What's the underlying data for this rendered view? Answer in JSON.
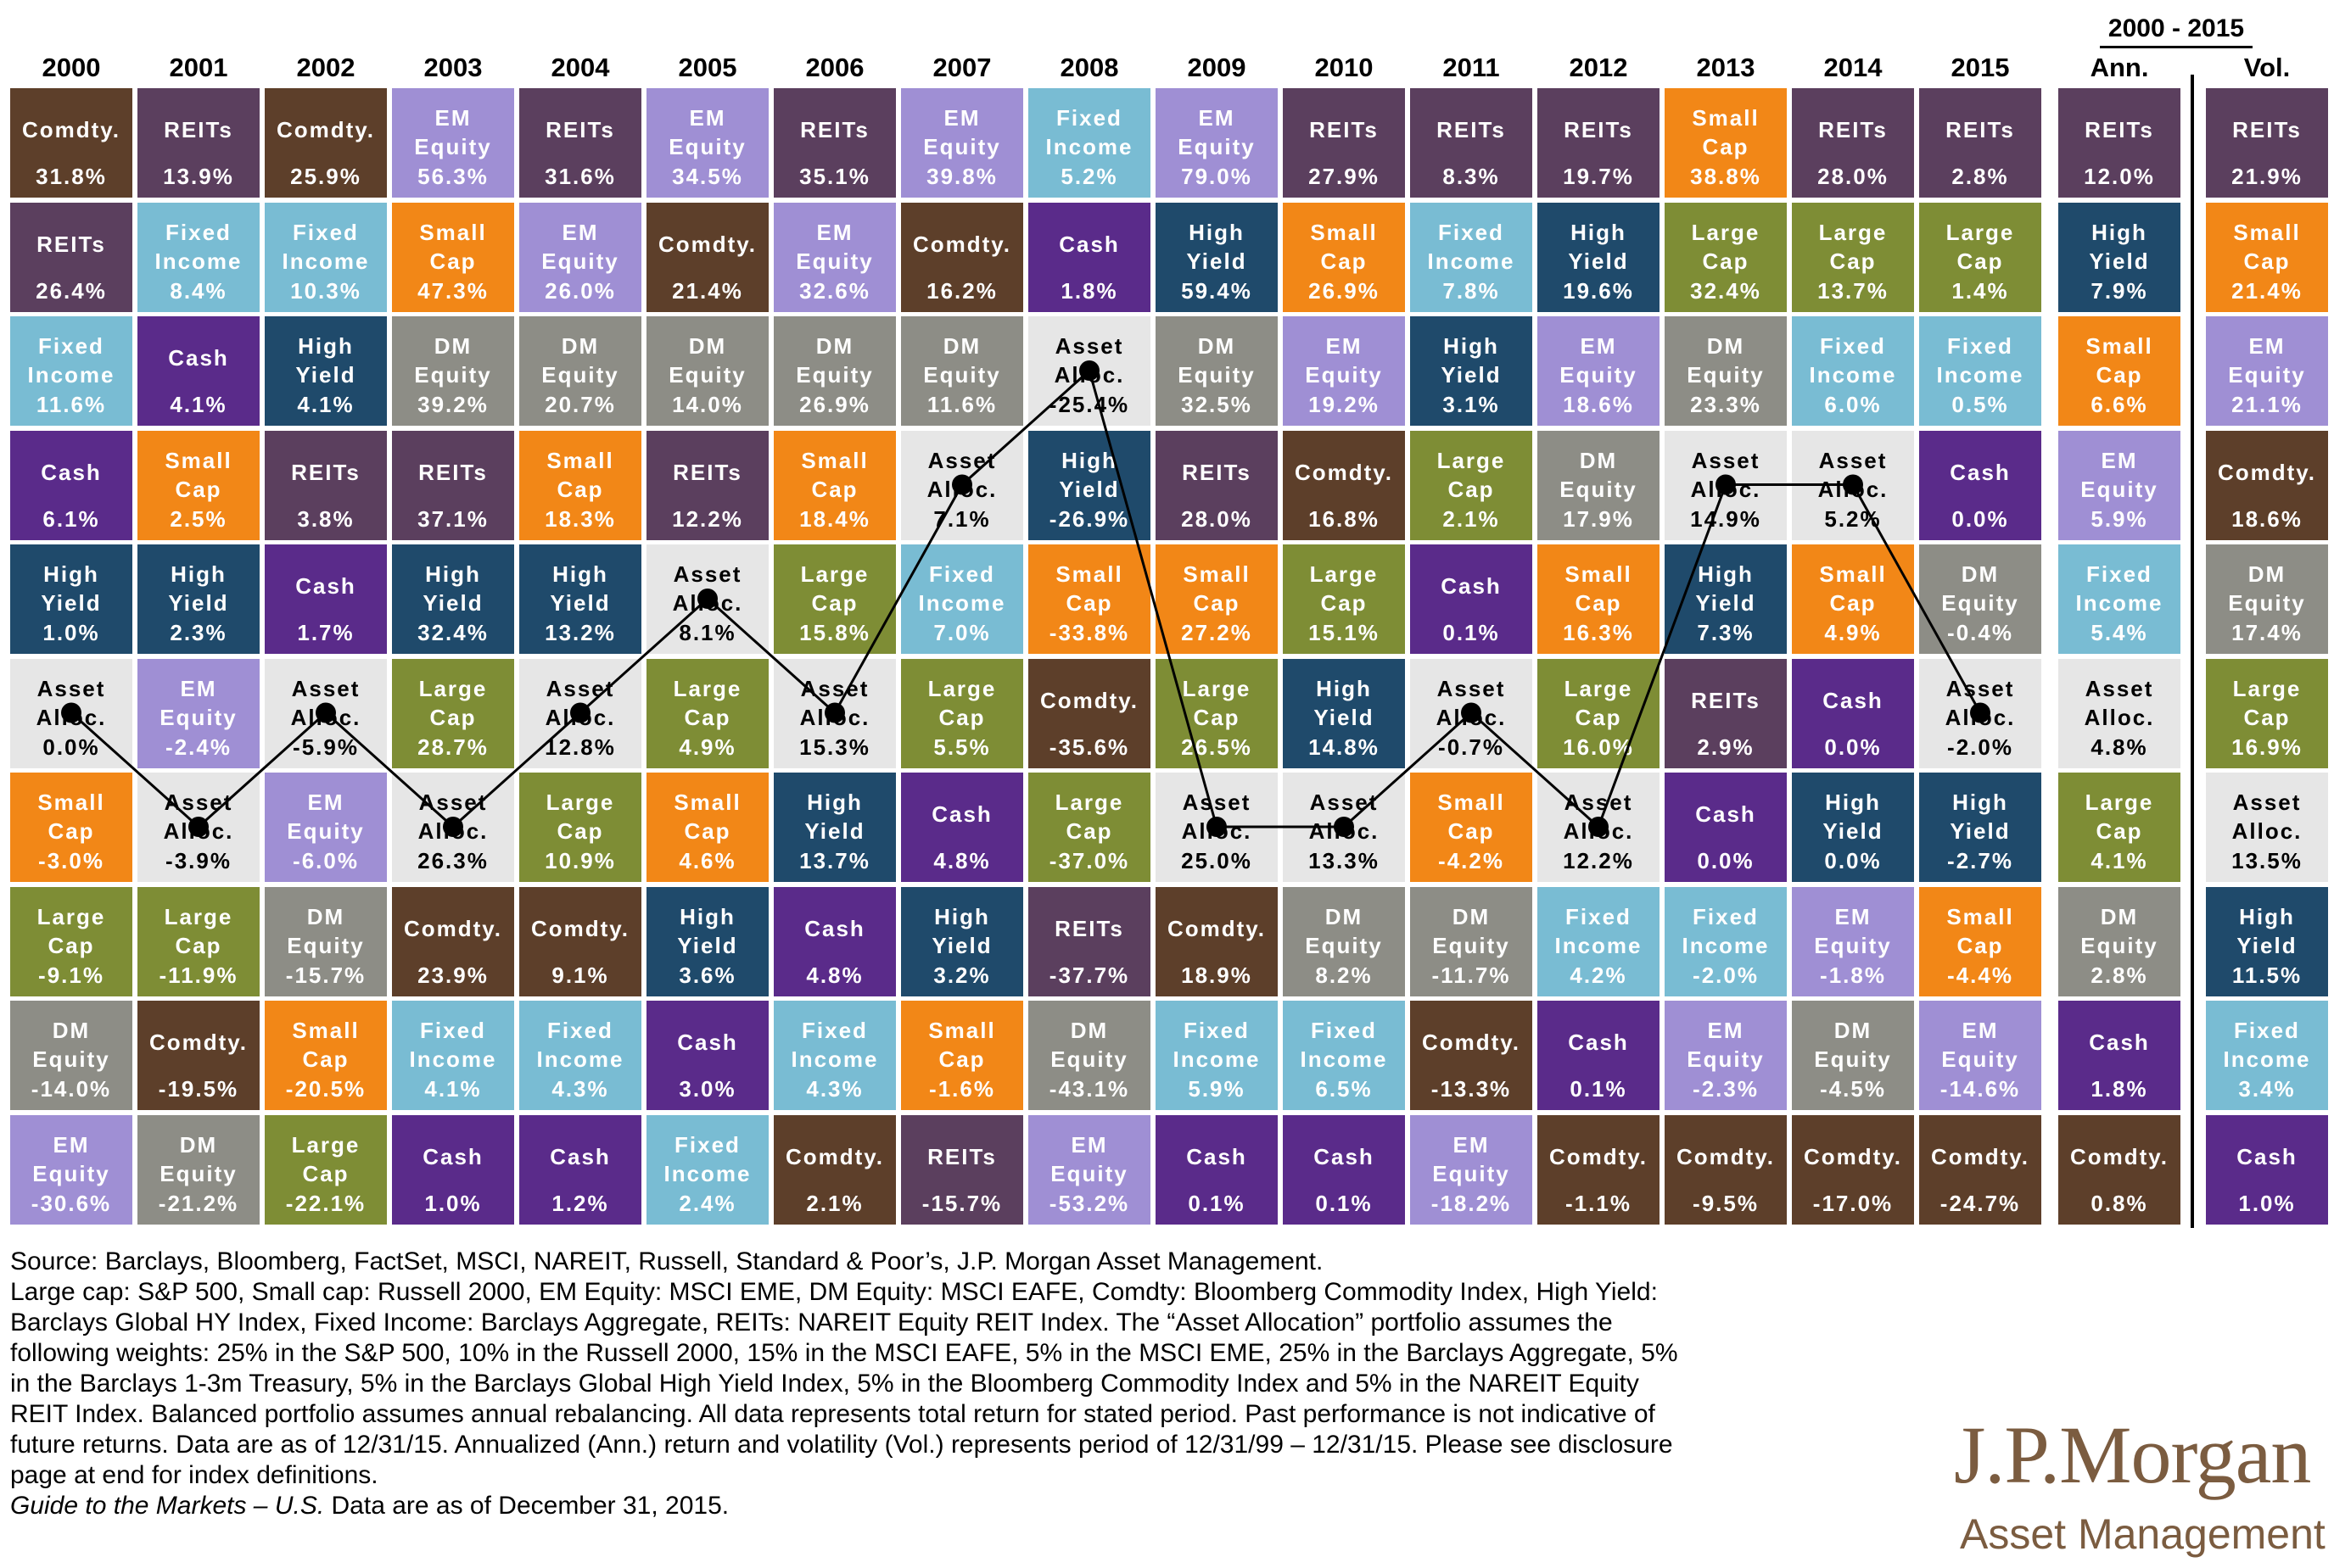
{
  "header": {
    "years": [
      "2000",
      "2001",
      "2002",
      "2003",
      "2004",
      "2005",
      "2006",
      "2007",
      "2008",
      "2009",
      "2010",
      "2011",
      "2012",
      "2013",
      "2014",
      "2015"
    ],
    "period_label": "2000 - 2015",
    "ann_label": "Ann.",
    "vol_label": "Vol."
  },
  "colors": {
    "REITs": "#5b3f5e",
    "Comdty": "#5d3f2a",
    "EM": "#9f8fd4",
    "Fixed": "#79bcd3",
    "Cash": "#5a2b8a",
    "Small": "#f28717",
    "High": "#1f4a6b",
    "DM": "#8d8d86",
    "Large": "#7e8d35",
    "Asset": "#e6e6e6"
  },
  "chart_data": {
    "type": "table",
    "columns": [
      "2000",
      "2001",
      "2002",
      "2003",
      "2004",
      "2005",
      "2006",
      "2007",
      "2008",
      "2009",
      "2010",
      "2011",
      "2012",
      "2013",
      "2014",
      "2015",
      "Ann.",
      "Vol."
    ],
    "grid": [
      [
        [
          "Comdty",
          "Comdty.",
          "31.8%"
        ],
        [
          "REITs",
          "REITs",
          "13.9%"
        ],
        [
          "Comdty",
          "Comdty.",
          "25.9%"
        ],
        [
          "EM",
          "EM\nEquity",
          "56.3%"
        ],
        [
          "REITs",
          "REITs",
          "31.6%"
        ],
        [
          "EM",
          "EM\nEquity",
          "34.5%"
        ],
        [
          "REITs",
          "REITs",
          "35.1%"
        ],
        [
          "EM",
          "EM\nEquity",
          "39.8%"
        ],
        [
          "Fixed",
          "Fixed\nIncome",
          "5.2%"
        ],
        [
          "EM",
          "EM\nEquity",
          "79.0%"
        ],
        [
          "REITs",
          "REITs",
          "27.9%"
        ],
        [
          "REITs",
          "REITs",
          "8.3%"
        ],
        [
          "REITs",
          "REITs",
          "19.7%"
        ],
        [
          "Small",
          "Small\nCap",
          "38.8%"
        ],
        [
          "REITs",
          "REITs",
          "28.0%"
        ],
        [
          "REITs",
          "REITs",
          "2.8%"
        ],
        [
          "REITs",
          "REITs",
          "12.0%"
        ],
        [
          "REITs",
          "REITs",
          "21.9%"
        ]
      ],
      [
        [
          "REITs",
          "REITs",
          "26.4%"
        ],
        [
          "Fixed",
          "Fixed\nIncome",
          "8.4%"
        ],
        [
          "Fixed",
          "Fixed\nIncome",
          "10.3%"
        ],
        [
          "Small",
          "Small\nCap",
          "47.3%"
        ],
        [
          "EM",
          "EM\nEquity",
          "26.0%"
        ],
        [
          "Comdty",
          "Comdty.",
          "21.4%"
        ],
        [
          "EM",
          "EM\nEquity",
          "32.6%"
        ],
        [
          "Comdty",
          "Comdty.",
          "16.2%"
        ],
        [
          "Cash",
          "Cash",
          "1.8%"
        ],
        [
          "High",
          "High\nYield",
          "59.4%"
        ],
        [
          "Small",
          "Small\nCap",
          "26.9%"
        ],
        [
          "Fixed",
          "Fixed\nIncome",
          "7.8%"
        ],
        [
          "High",
          "High\nYield",
          "19.6%"
        ],
        [
          "Large",
          "Large\nCap",
          "32.4%"
        ],
        [
          "Large",
          "Large\nCap",
          "13.7%"
        ],
        [
          "Large",
          "Large\nCap",
          "1.4%"
        ],
        [
          "High",
          "High\nYield",
          "7.9%"
        ],
        [
          "Small",
          "Small\nCap",
          "21.4%"
        ]
      ],
      [
        [
          "Fixed",
          "Fixed\nIncome",
          "11.6%"
        ],
        [
          "Cash",
          "Cash",
          "4.1%"
        ],
        [
          "High",
          "High\nYield",
          "4.1%"
        ],
        [
          "DM",
          "DM\nEquity",
          "39.2%"
        ],
        [
          "DM",
          "DM\nEquity",
          "20.7%"
        ],
        [
          "DM",
          "DM\nEquity",
          "14.0%"
        ],
        [
          "DM",
          "DM\nEquity",
          "26.9%"
        ],
        [
          "DM",
          "DM\nEquity",
          "11.6%"
        ],
        [
          "Asset",
          "Asset\nAlloc.",
          "-25.4%"
        ],
        [
          "DM",
          "DM\nEquity",
          "32.5%"
        ],
        [
          "EM",
          "EM\nEquity",
          "19.2%"
        ],
        [
          "High",
          "High\nYield",
          "3.1%"
        ],
        [
          "EM",
          "EM\nEquity",
          "18.6%"
        ],
        [
          "DM",
          "DM\nEquity",
          "23.3%"
        ],
        [
          "Fixed",
          "Fixed\nIncome",
          "6.0%"
        ],
        [
          "Fixed",
          "Fixed\nIncome",
          "0.5%"
        ],
        [
          "Small",
          "Small\nCap",
          "6.6%"
        ],
        [
          "EM",
          "EM\nEquity",
          "21.1%"
        ]
      ],
      [
        [
          "Cash",
          "Cash",
          "6.1%"
        ],
        [
          "Small",
          "Small\nCap",
          "2.5%"
        ],
        [
          "REITs",
          "REITs",
          "3.8%"
        ],
        [
          "REITs",
          "REITs",
          "37.1%"
        ],
        [
          "Small",
          "Small\nCap",
          "18.3%"
        ],
        [
          "REITs",
          "REITs",
          "12.2%"
        ],
        [
          "Small",
          "Small\nCap",
          "18.4%"
        ],
        [
          "Asset",
          "Asset\nAlloc.",
          "7.1%"
        ],
        [
          "High",
          "High\nYield",
          "-26.9%"
        ],
        [
          "REITs",
          "REITs",
          "28.0%"
        ],
        [
          "Comdty",
          "Comdty.",
          "16.8%"
        ],
        [
          "Large",
          "Large\nCap",
          "2.1%"
        ],
        [
          "DM",
          "DM\nEquity",
          "17.9%"
        ],
        [
          "Asset",
          "Asset\nAlloc.",
          "14.9%"
        ],
        [
          "Asset",
          "Asset\nAlloc.",
          "5.2%"
        ],
        [
          "Cash",
          "Cash",
          "0.0%"
        ],
        [
          "EM",
          "EM\nEquity",
          "5.9%"
        ],
        [
          "Comdty",
          "Comdty.",
          "18.6%"
        ]
      ],
      [
        [
          "High",
          "High\nYield",
          "1.0%"
        ],
        [
          "High",
          "High\nYield",
          "2.3%"
        ],
        [
          "Cash",
          "Cash",
          "1.7%"
        ],
        [
          "High",
          "High\nYield",
          "32.4%"
        ],
        [
          "High",
          "High\nYield",
          "13.2%"
        ],
        [
          "Asset",
          "Asset\nAlloc.",
          "8.1%"
        ],
        [
          "Large",
          "Large\nCap",
          "15.8%"
        ],
        [
          "Fixed",
          "Fixed\nIncome",
          "7.0%"
        ],
        [
          "Small",
          "Small\nCap",
          "-33.8%"
        ],
        [
          "Small",
          "Small\nCap",
          "27.2%"
        ],
        [
          "Large",
          "Large\nCap",
          "15.1%"
        ],
        [
          "Cash",
          "Cash",
          "0.1%"
        ],
        [
          "Small",
          "Small\nCap",
          "16.3%"
        ],
        [
          "High",
          "High\nYield",
          "7.3%"
        ],
        [
          "Small",
          "Small\nCap",
          "4.9%"
        ],
        [
          "DM",
          "DM\nEquity",
          "-0.4%"
        ],
        [
          "Fixed",
          "Fixed\nIncome",
          "5.4%"
        ],
        [
          "DM",
          "DM\nEquity",
          "17.4%"
        ]
      ],
      [
        [
          "Asset",
          "Asset\nAlloc.",
          "0.0%"
        ],
        [
          "EM",
          "EM\nEquity",
          "-2.4%"
        ],
        [
          "Asset",
          "Asset\nAlloc.",
          "-5.9%"
        ],
        [
          "Large",
          "Large\nCap",
          "28.7%"
        ],
        [
          "Asset",
          "Asset\nAlloc.",
          "12.8%"
        ],
        [
          "Large",
          "Large\nCap",
          "4.9%"
        ],
        [
          "Asset",
          "Asset\nAlloc.",
          "15.3%"
        ],
        [
          "Large",
          "Large\nCap",
          "5.5%"
        ],
        [
          "Comdty",
          "Comdty.",
          "-35.6%"
        ],
        [
          "Large",
          "Large\nCap",
          "26.5%"
        ],
        [
          "High",
          "High\nYield",
          "14.8%"
        ],
        [
          "Asset",
          "Asset\nAlloc.",
          "-0.7%"
        ],
        [
          "Large",
          "Large\nCap",
          "16.0%"
        ],
        [
          "REITs",
          "REITs",
          "2.9%"
        ],
        [
          "Cash",
          "Cash",
          "0.0%"
        ],
        [
          "Asset",
          "Asset\nAlloc.",
          "-2.0%"
        ],
        [
          "Asset",
          "Asset\nAlloc.",
          "4.8%"
        ],
        [
          "Large",
          "Large\nCap",
          "16.9%"
        ]
      ],
      [
        [
          "Small",
          "Small\nCap",
          "-3.0%"
        ],
        [
          "Asset",
          "Asset\nAlloc.",
          "-3.9%"
        ],
        [
          "EM",
          "EM\nEquity",
          "-6.0%"
        ],
        [
          "Asset",
          "Asset\nAlloc.",
          "26.3%"
        ],
        [
          "Large",
          "Large\nCap",
          "10.9%"
        ],
        [
          "Small",
          "Small\nCap",
          "4.6%"
        ],
        [
          "High",
          "High\nYield",
          "13.7%"
        ],
        [
          "Cash",
          "Cash",
          "4.8%"
        ],
        [
          "Large",
          "Large\nCap",
          "-37.0%"
        ],
        [
          "Asset",
          "Asset\nAlloc.",
          "25.0%"
        ],
        [
          "Asset",
          "Asset\nAlloc.",
          "13.3%"
        ],
        [
          "Small",
          "Small\nCap",
          "-4.2%"
        ],
        [
          "Asset",
          "Asset\nAlloc.",
          "12.2%"
        ],
        [
          "Cash",
          "Cash",
          "0.0%"
        ],
        [
          "High",
          "High\nYield",
          "0.0%"
        ],
        [
          "High",
          "High\nYield",
          "-2.7%"
        ],
        [
          "Large",
          "Large\nCap",
          "4.1%"
        ],
        [
          "Asset",
          "Asset\nAlloc.",
          "13.5%"
        ]
      ],
      [
        [
          "Large",
          "Large\nCap",
          "-9.1%"
        ],
        [
          "Large",
          "Large\nCap",
          "-11.9%"
        ],
        [
          "DM",
          "DM\nEquity",
          "-15.7%"
        ],
        [
          "Comdty",
          "Comdty.",
          "23.9%"
        ],
        [
          "Comdty",
          "Comdty.",
          "9.1%"
        ],
        [
          "High",
          "High\nYield",
          "3.6%"
        ],
        [
          "Cash",
          "Cash",
          "4.8%"
        ],
        [
          "High",
          "High\nYield",
          "3.2%"
        ],
        [
          "REITs",
          "REITs",
          "-37.7%"
        ],
        [
          "Comdty",
          "Comdty.",
          "18.9%"
        ],
        [
          "DM",
          "DM\nEquity",
          "8.2%"
        ],
        [
          "DM",
          "DM\nEquity",
          "-11.7%"
        ],
        [
          "Fixed",
          "Fixed\nIncome",
          "4.2%"
        ],
        [
          "Fixed",
          "Fixed\nIncome",
          "-2.0%"
        ],
        [
          "EM",
          "EM\nEquity",
          "-1.8%"
        ],
        [
          "Small",
          "Small\nCap",
          "-4.4%"
        ],
        [
          "DM",
          "DM\nEquity",
          "2.8%"
        ],
        [
          "High",
          "High\nYield",
          "11.5%"
        ]
      ],
      [
        [
          "DM",
          "DM\nEquity",
          "-14.0%"
        ],
        [
          "Comdty",
          "Comdty.",
          "-19.5%"
        ],
        [
          "Small",
          "Small\nCap",
          "-20.5%"
        ],
        [
          "Fixed",
          "Fixed\nIncome",
          "4.1%"
        ],
        [
          "Fixed",
          "Fixed\nIncome",
          "4.3%"
        ],
        [
          "Cash",
          "Cash",
          "3.0%"
        ],
        [
          "Fixed",
          "Fixed\nIncome",
          "4.3%"
        ],
        [
          "Small",
          "Small\nCap",
          "-1.6%"
        ],
        [
          "DM",
          "DM\nEquity",
          "-43.1%"
        ],
        [
          "Fixed",
          "Fixed\nIncome",
          "5.9%"
        ],
        [
          "Fixed",
          "Fixed\nIncome",
          "6.5%"
        ],
        [
          "Comdty",
          "Comdty.",
          "-13.3%"
        ],
        [
          "Cash",
          "Cash",
          "0.1%"
        ],
        [
          "EM",
          "EM\nEquity",
          "-2.3%"
        ],
        [
          "DM",
          "DM\nEquity",
          "-4.5%"
        ],
        [
          "EM",
          "EM\nEquity",
          "-14.6%"
        ],
        [
          "Cash",
          "Cash",
          "1.8%"
        ],
        [
          "Fixed",
          "Fixed\nIncome",
          "3.4%"
        ]
      ],
      [
        [
          "EM",
          "EM\nEquity",
          "-30.6%"
        ],
        [
          "DM",
          "DM\nEquity",
          "-21.2%"
        ],
        [
          "Large",
          "Large\nCap",
          "-22.1%"
        ],
        [
          "Cash",
          "Cash",
          "1.0%"
        ],
        [
          "Cash",
          "Cash",
          "1.2%"
        ],
        [
          "Fixed",
          "Fixed\nIncome",
          "2.4%"
        ],
        [
          "Comdty",
          "Comdty.",
          "2.1%"
        ],
        [
          "REITs",
          "REITs",
          "-15.7%"
        ],
        [
          "EM",
          "EM\nEquity",
          "-53.2%"
        ],
        [
          "Cash",
          "Cash",
          "0.1%"
        ],
        [
          "Cash",
          "Cash",
          "0.1%"
        ],
        [
          "EM",
          "EM\nEquity",
          "-18.2%"
        ],
        [
          "Comdty",
          "Comdty.",
          "-1.1%"
        ],
        [
          "Comdty",
          "Comdty.",
          "-9.5%"
        ],
        [
          "Comdty",
          "Comdty.",
          "-17.0%"
        ],
        [
          "Comdty",
          "Comdty.",
          "-24.7%"
        ],
        [
          "Comdty",
          "Comdty.",
          "0.8%"
        ],
        [
          "Cash",
          "Cash",
          "1.0%"
        ]
      ]
    ],
    "asset_allocation_ranks": [
      6,
      7,
      6,
      7,
      6,
      5,
      6,
      4,
      3,
      7,
      7,
      6,
      7,
      4,
      4,
      6
    ]
  },
  "footer": {
    "lines": [
      "Source: Barclays, Bloomberg, FactSet, MSCI, NAREIT, Russell, Standard & Poor’s, J.P. Morgan Asset Management.",
      "Large cap: S&P 500, Small cap: Russell 2000, EM Equity: MSCI EME, DM Equity: MSCI EAFE, Comdty: Bloomberg Commodity Index, High Yield:",
      "Barclays Global HY Index, Fixed Income: Barclays Aggregate, REITs: NAREIT Equity REIT Index. The “Asset Allocation” portfolio assumes the",
      "following weights: 25% in the S&P 500, 10% in the Russell 2000, 15% in the MSCI EAFE, 5% in the MSCI EME, 25% in the Barclays Aggregate, 5%",
      "in the Barclays 1-3m Treasury, 5% in the Barclays Global High Yield Index, 5% in the Bloomberg Commodity Index and 5% in the NAREIT Equity",
      "REIT Index. Balanced portfolio assumes annual rebalancing. All data represents total return for stated period. Past performance is not indicative of",
      "future returns. Data are as of 12/31/15. Annualized (Ann.) return and volatility (Vol.) represents period of 12/31/99 – 12/31/15. Please see disclosure",
      "page at end for index definitions."
    ],
    "guide_italic": "Guide to the Markets – U.S.",
    "guide_rest": " Data are as of December 31, 2015."
  },
  "logo": {
    "main": "J.P.Morgan",
    "sub": "Asset Management"
  }
}
